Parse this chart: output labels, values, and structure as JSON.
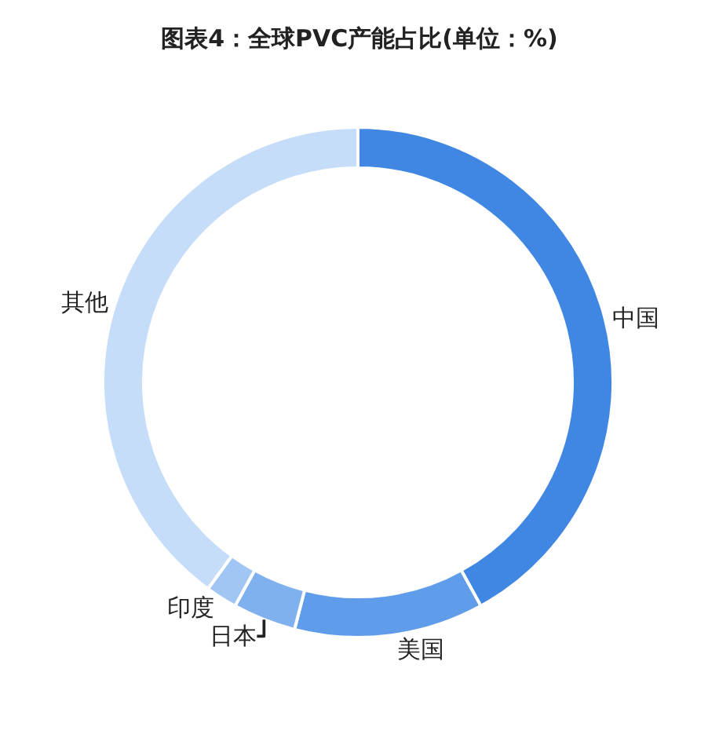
{
  "chart_data": {
    "type": "donut",
    "title": "图表4：全球PVC产能占比(单位：%)",
    "categories": [
      "中国",
      "美国",
      "日本",
      "印度",
      "其他"
    ],
    "values": [
      42,
      12,
      4,
      2,
      40
    ],
    "colors": [
      "#3f87e3",
      "#5f9ce9",
      "#80b1ef",
      "#a2c6f4",
      "#c5ddf9"
    ],
    "legend": false
  }
}
